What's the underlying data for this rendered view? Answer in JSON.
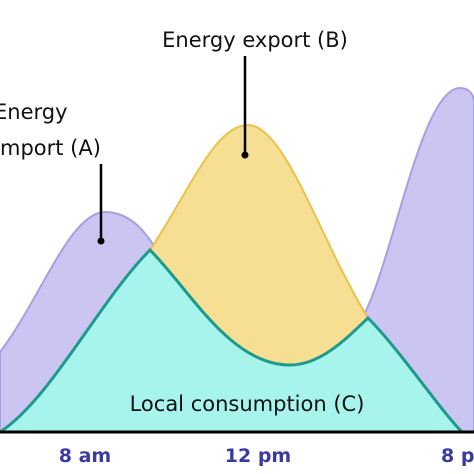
{
  "labels": {
    "export": "Energy export (B)",
    "import_line1": "Energy",
    "import_line2": "mport (A)",
    "consumption": "Local consumption (C)"
  },
  "x_labels": [
    "8 am",
    "12 pm",
    "8 p"
  ]
}
